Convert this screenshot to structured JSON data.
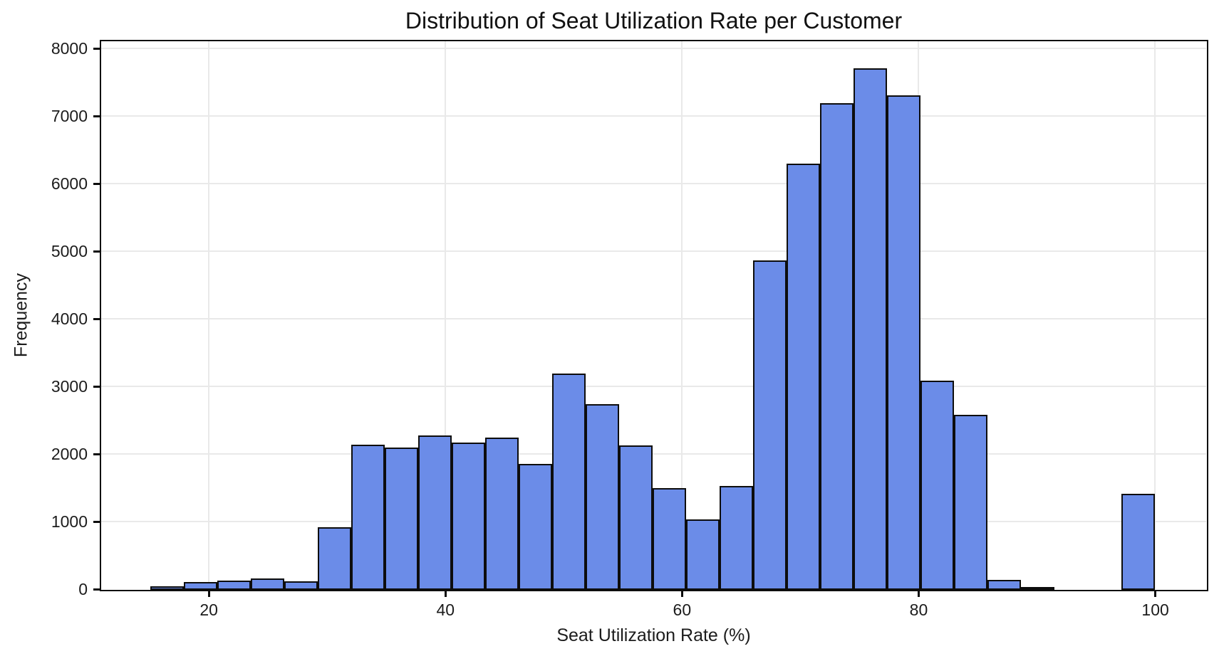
{
  "chart_data": {
    "type": "bar",
    "subtype": "histogram",
    "title": "Distribution of Seat Utilization Rate per Customer",
    "xlabel": "Seat Utilization Rate (%)",
    "ylabel": "Frequency",
    "xlim": [
      10.9,
      104.3
    ],
    "ylim": [
      0,
      8110
    ],
    "x_ticks": [
      20,
      40,
      60,
      80,
      100
    ],
    "y_ticks": [
      0,
      1000,
      2000,
      3000,
      4000,
      5000,
      6000,
      7000,
      8000
    ],
    "bin_start": 15.1,
    "bin_width": 2.83,
    "bin_count": 30,
    "frequencies": [
      50,
      110,
      135,
      160,
      125,
      920,
      2140,
      2100,
      2280,
      2180,
      2250,
      1860,
      3200,
      2740,
      2130,
      1500,
      1040,
      1530,
      4870,
      6300,
      7200,
      7720,
      7320,
      3090,
      2590,
      140,
      40,
      0,
      0,
      1420
    ],
    "grid": true,
    "legend": null,
    "bar_color": "#6b8ce8",
    "bar_edge_color": "#0d0d0d",
    "text_color": "#1c1c1c",
    "grid_color": "#e9e9e9"
  }
}
